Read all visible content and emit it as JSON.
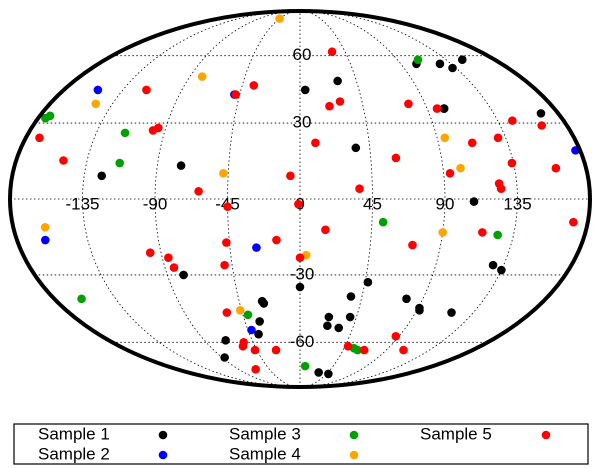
{
  "chart_data": {
    "type": "scatter",
    "projection": "mollweide",
    "grid": true,
    "legend_placement": "bottom",
    "x_ticks": [
      "-135",
      "-90",
      "-45",
      "0",
      "45",
      "90",
      "135"
    ],
    "y_ticks": [
      "60",
      "30",
      "-30",
      "-60"
    ],
    "series": [
      {
        "name": "Sample 1",
        "color": "#000000",
        "points": [
          [
            4,
            44
          ],
          [
            30,
            48
          ],
          [
            36,
            20
          ],
          [
            104,
            56
          ],
          [
            102,
            36
          ],
          [
            102,
            36
          ],
          [
            125,
            56
          ],
          [
            132,
            54
          ],
          [
            168,
            34
          ],
          [
            150,
            58
          ],
          [
            -124,
            9
          ],
          [
            -75,
            13
          ],
          [
            -79,
            -30
          ],
          [
            -70,
            -59
          ],
          [
            -87,
            -68
          ],
          [
            -37,
            -56
          ],
          [
            -33,
            -50
          ],
          [
            -27,
            -42
          ],
          [
            -28,
            -41
          ],
          [
            0,
            -35
          ],
          [
            23,
            -52
          ],
          [
            23,
            -48
          ],
          [
            33,
            -53
          ],
          [
            37,
            -39
          ],
          [
            40,
            -48
          ],
          [
            47,
            -33
          ],
          [
            78,
            -40
          ],
          [
            91,
            -44
          ],
          [
            92,
            -45
          ],
          [
            118,
            -46
          ],
          [
            128,
            -26
          ],
          [
            135,
            -28
          ],
          [
            108,
            -1
          ],
          [
            48,
            -78
          ],
          [
            30,
            -77
          ]
        ]
      },
      {
        "name": "Sample 2",
        "color": "#0000ff",
        "points": [
          [
            -154,
            44
          ],
          [
            -49,
            42
          ],
          [
            -162,
            -16
          ],
          [
            -28,
            -19
          ],
          [
            -42,
            -54
          ],
          [
            177,
            19
          ]
        ]
      },
      {
        "name": "Sample 3",
        "color": "#00a000",
        "points": [
          [
            -175,
            32
          ],
          [
            -173,
            33
          ],
          [
            -116,
            26
          ],
          [
            -114,
            14
          ],
          [
            109,
            58
          ],
          [
            125,
            -14
          ],
          [
            -160,
            -40
          ],
          [
            -41,
            -47
          ],
          [
            52,
            -9
          ],
          [
            55,
            -63
          ],
          [
            60,
            -64
          ],
          [
            7,
            -73
          ]
        ]
      },
      {
        "name": "Sample 4",
        "color": "#ffa500",
        "points": [
          [
            -45,
            82
          ],
          [
            -80,
            50
          ],
          [
            -147,
            38
          ],
          [
            -48,
            10
          ],
          [
            -160,
            -11
          ],
          [
            -46,
            -45
          ],
          [
            4,
            -22
          ],
          [
            90,
            -13
          ],
          [
            95,
            24
          ],
          [
            101,
            12
          ]
        ]
      },
      {
        "name": "Sample 5",
        "color": "#ff0000",
        "points": [
          [
            -117,
            44
          ],
          [
            -36,
            46
          ],
          [
            -48,
            42
          ],
          [
            32,
            62
          ],
          [
            21,
            37
          ],
          [
            29,
            39
          ],
          [
            -171,
            24
          ],
          [
            -98,
            27
          ],
          [
            -95,
            28
          ],
          [
            -150,
            15
          ],
          [
            -6,
            9
          ],
          [
            -63,
            3
          ],
          [
            -45,
            -3
          ],
          [
            37,
            4
          ],
          [
            61,
            16
          ],
          [
            78,
            38
          ],
          [
            97,
            36
          ],
          [
            94,
            10
          ],
          [
            112,
            22
          ],
          [
            130,
            24
          ],
          [
            145,
            31
          ],
          [
            163,
            29
          ],
          [
            161,
            12
          ],
          [
            134,
            14
          ],
          [
            124,
            6
          ],
          [
            125,
            4
          ],
          [
            171,
            -9
          ],
          [
            -1,
            -2
          ],
          [
            -97,
            -21
          ],
          [
            -86,
            -23
          ],
          [
            -84,
            -27
          ],
          [
            -47,
            -17
          ],
          [
            -50,
            -26
          ],
          [
            -15,
            -16
          ],
          [
            16,
            -12
          ],
          [
            72,
            -18
          ],
          [
            115,
            -13
          ],
          [
            -57,
            -46
          ],
          [
            -57,
            -62
          ],
          [
            -54,
            -60
          ],
          [
            -47,
            -64
          ],
          [
            48,
            -62
          ],
          [
            67,
            -64
          ],
          [
            87,
            -57
          ],
          [
            10,
            22
          ],
          [
            0,
            -23
          ],
          [
            -25,
            -64
          ],
          [
            -65,
            -75
          ],
          [
            108,
            -64
          ]
        ]
      }
    ]
  }
}
